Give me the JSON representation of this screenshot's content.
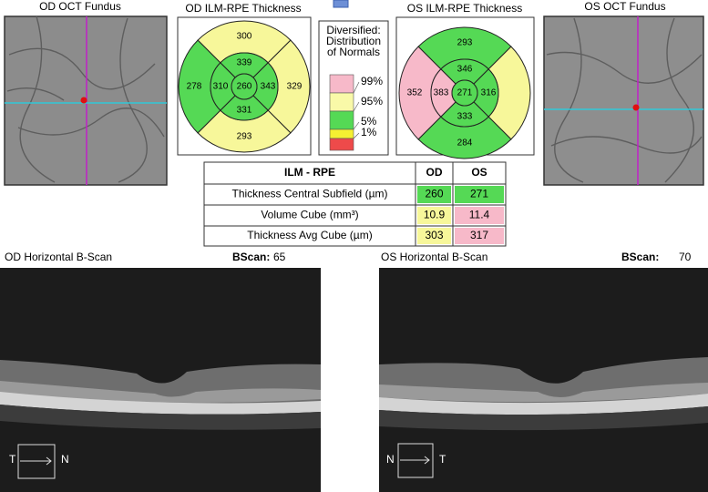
{
  "od_fundus": {
    "title": "OD OCT Fundus"
  },
  "os_fundus": {
    "title": "OS OCT Fundus"
  },
  "od_thickness": {
    "title": "OD ILM-RPE Thickness",
    "center": {
      "value": 260,
      "color": "#55d955"
    },
    "inner": [
      {
        "value": 339,
        "color": "#55d955"
      },
      {
        "value": 343,
        "color": "#55d955"
      },
      {
        "value": 331,
        "color": "#55d955"
      },
      {
        "value": 310,
        "color": "#55d955"
      }
    ],
    "outer": [
      {
        "value": 300,
        "color": "#f7f79a"
      },
      {
        "value": 329,
        "color": "#f7f79a"
      },
      {
        "value": 293,
        "color": "#f7f79a"
      },
      {
        "value": 278,
        "color": "#55d955"
      }
    ]
  },
  "os_thickness": {
    "title": "OS ILM-RPE Thickness",
    "center": {
      "value": 271,
      "color": "#55d955"
    },
    "inner": [
      {
        "value": 346,
        "color": "#55d955"
      },
      {
        "value": 316,
        "color": "#55d955"
      },
      {
        "value": 333,
        "color": "#55d955"
      },
      {
        "value": 383,
        "color": "#f7b9c9"
      }
    ],
    "outer": [
      {
        "value": 293,
        "color": "#55d955"
      },
      {
        "value": null,
        "color": "#f7f79a"
      },
      {
        "value": 284,
        "color": "#55d955"
      },
      {
        "value": 352,
        "color": "#f7b9c9"
      }
    ]
  },
  "legend": {
    "title_lines": [
      "Diversified:",
      "Distribution",
      "of Normals"
    ],
    "colors": [
      "#f7b9c9",
      "#f9f9a8",
      "#55d955",
      "#f5f032",
      "#ee4a4a"
    ],
    "labels": [
      "99%",
      "95%",
      "5%",
      "1%"
    ]
  },
  "table": {
    "header": [
      "ILM - RPE",
      "OD",
      "OS"
    ],
    "rows": [
      {
        "label": "Thickness Central Subfield (µm)",
        "cells": [
          {
            "value": 260,
            "color": "#55d955"
          },
          {
            "value": 271,
            "color": "#55d955"
          }
        ]
      },
      {
        "label": "Volume Cube (mm³)",
        "cells": [
          {
            "value": 10.9,
            "color": "#f7f79a"
          },
          {
            "value": 11.4,
            "color": "#f7b9c9"
          }
        ]
      },
      {
        "label": "Thickness Avg Cube (µm)",
        "cells": [
          {
            "value": 303,
            "color": "#f7f79a"
          },
          {
            "value": 317,
            "color": "#f7b9c9"
          }
        ]
      }
    ]
  },
  "od_bscan": {
    "title": "OD Horizontal B-Scan",
    "bscan_label": "BScan:",
    "bscan_number": 65,
    "orientation": [
      "T",
      "N"
    ]
  },
  "os_bscan": {
    "title": "OS Horizontal B-Scan",
    "bscan_label": "BScan:",
    "bscan_number": 70,
    "orientation": [
      "N",
      "T"
    ]
  }
}
